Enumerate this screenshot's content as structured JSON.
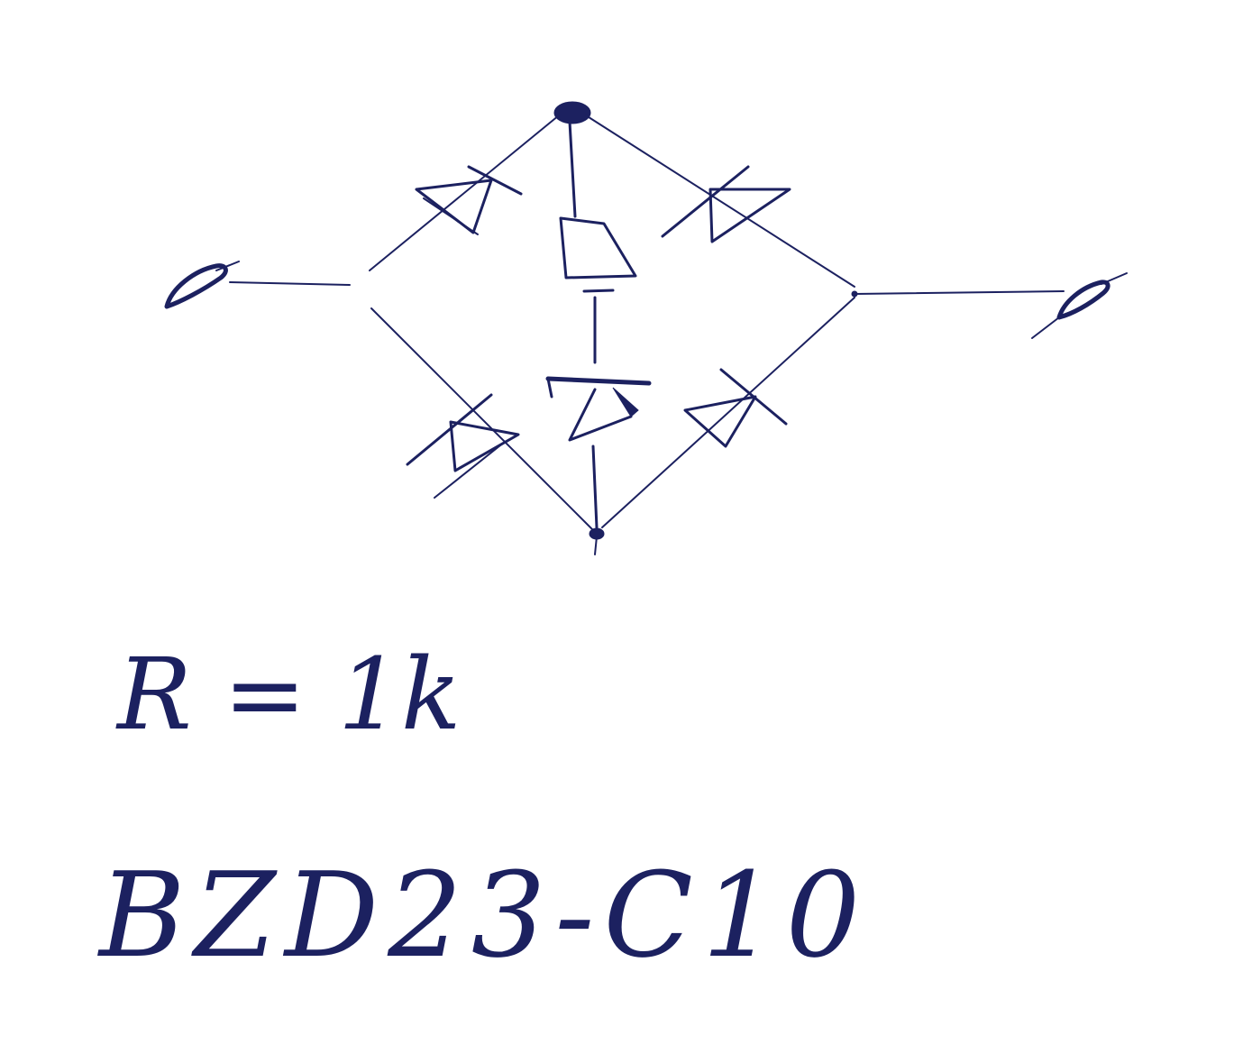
{
  "annotations": {
    "resistance": "R = 1k",
    "part_number": "BZD23-C10"
  },
  "colors": {
    "ink": "#1c2160",
    "paper": "#ffffff"
  }
}
